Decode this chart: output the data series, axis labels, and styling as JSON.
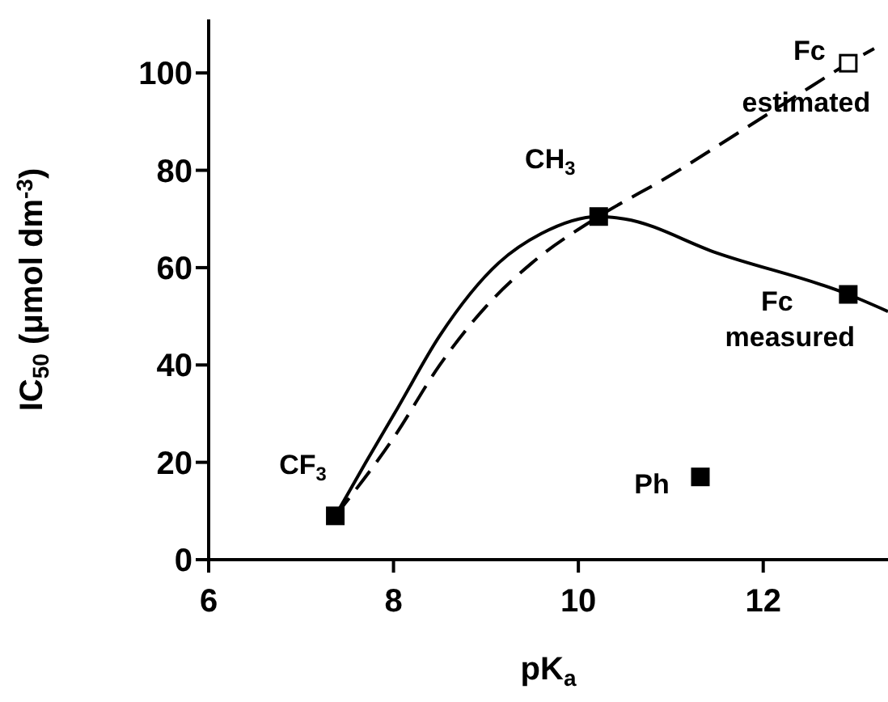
{
  "chart_data": {
    "type": "scatter",
    "xlabel": "pK$_{a}$",
    "ylabel": "IC$_{50}$ (μmol dm$^{-3}$)",
    "xlim": [
      6,
      13.35
    ],
    "ylim": [
      0,
      111
    ],
    "xticks": [
      6,
      8,
      10,
      12
    ],
    "yticks": [
      0,
      20,
      40,
      60,
      80,
      100
    ],
    "series": [
      {
        "type": "line",
        "color": "#000000",
        "line_style": "solid",
        "marker": "none",
        "x": [
          7.37,
          7.7,
          8.04,
          8.5,
          9.14,
          9.6,
          10.22,
          10.5,
          11.5,
          12.92,
          13.35
        ],
        "values": [
          9,
          20,
          31,
          46,
          61,
          67,
          70.5,
          70,
          63,
          54.5,
          51
        ]
      },
      {
        "type": "line",
        "color": "#000000",
        "line_style": "dashed",
        "marker": "none",
        "x": [
          7.37,
          8,
          8.5,
          9,
          9.5,
          10.22,
          11,
          11.63,
          12.5,
          12.92,
          13.2
        ],
        "values": [
          9,
          25,
          40,
          52,
          61,
          70.5,
          79,
          86.5,
          97,
          102,
          105
        ]
      },
      {
        "color": "#000000",
        "marker": "square",
        "x": [
          7.37,
          10.22,
          12.92,
          11.32
        ],
        "values": [
          9,
          70.5,
          54.5,
          17
        ]
      },
      {
        "color": "#000000",
        "marker": "square",
        "x": [
          12.92
        ],
        "values": [
          102
        ]
      }
    ],
    "annotations": [
      {
        "text": "CF$_{3}$",
        "x": 7.37,
        "y": 9
      },
      {
        "text": "CH$_{3}$",
        "x": 10.22,
        "y": 70.5
      },
      {
        "text": "Fc",
        "x": 12.92,
        "y": 54.5
      },
      {
        "text": "measured",
        "x": 12.92,
        "y": 54.5
      },
      {
        "text": "Ph",
        "x": 11.32,
        "y": 17
      },
      {
        "text": "Fc",
        "x": 12.92,
        "y": 102
      },
      {
        "text": "estimated",
        "x": 12.92,
        "y": 102
      }
    ]
  }
}
